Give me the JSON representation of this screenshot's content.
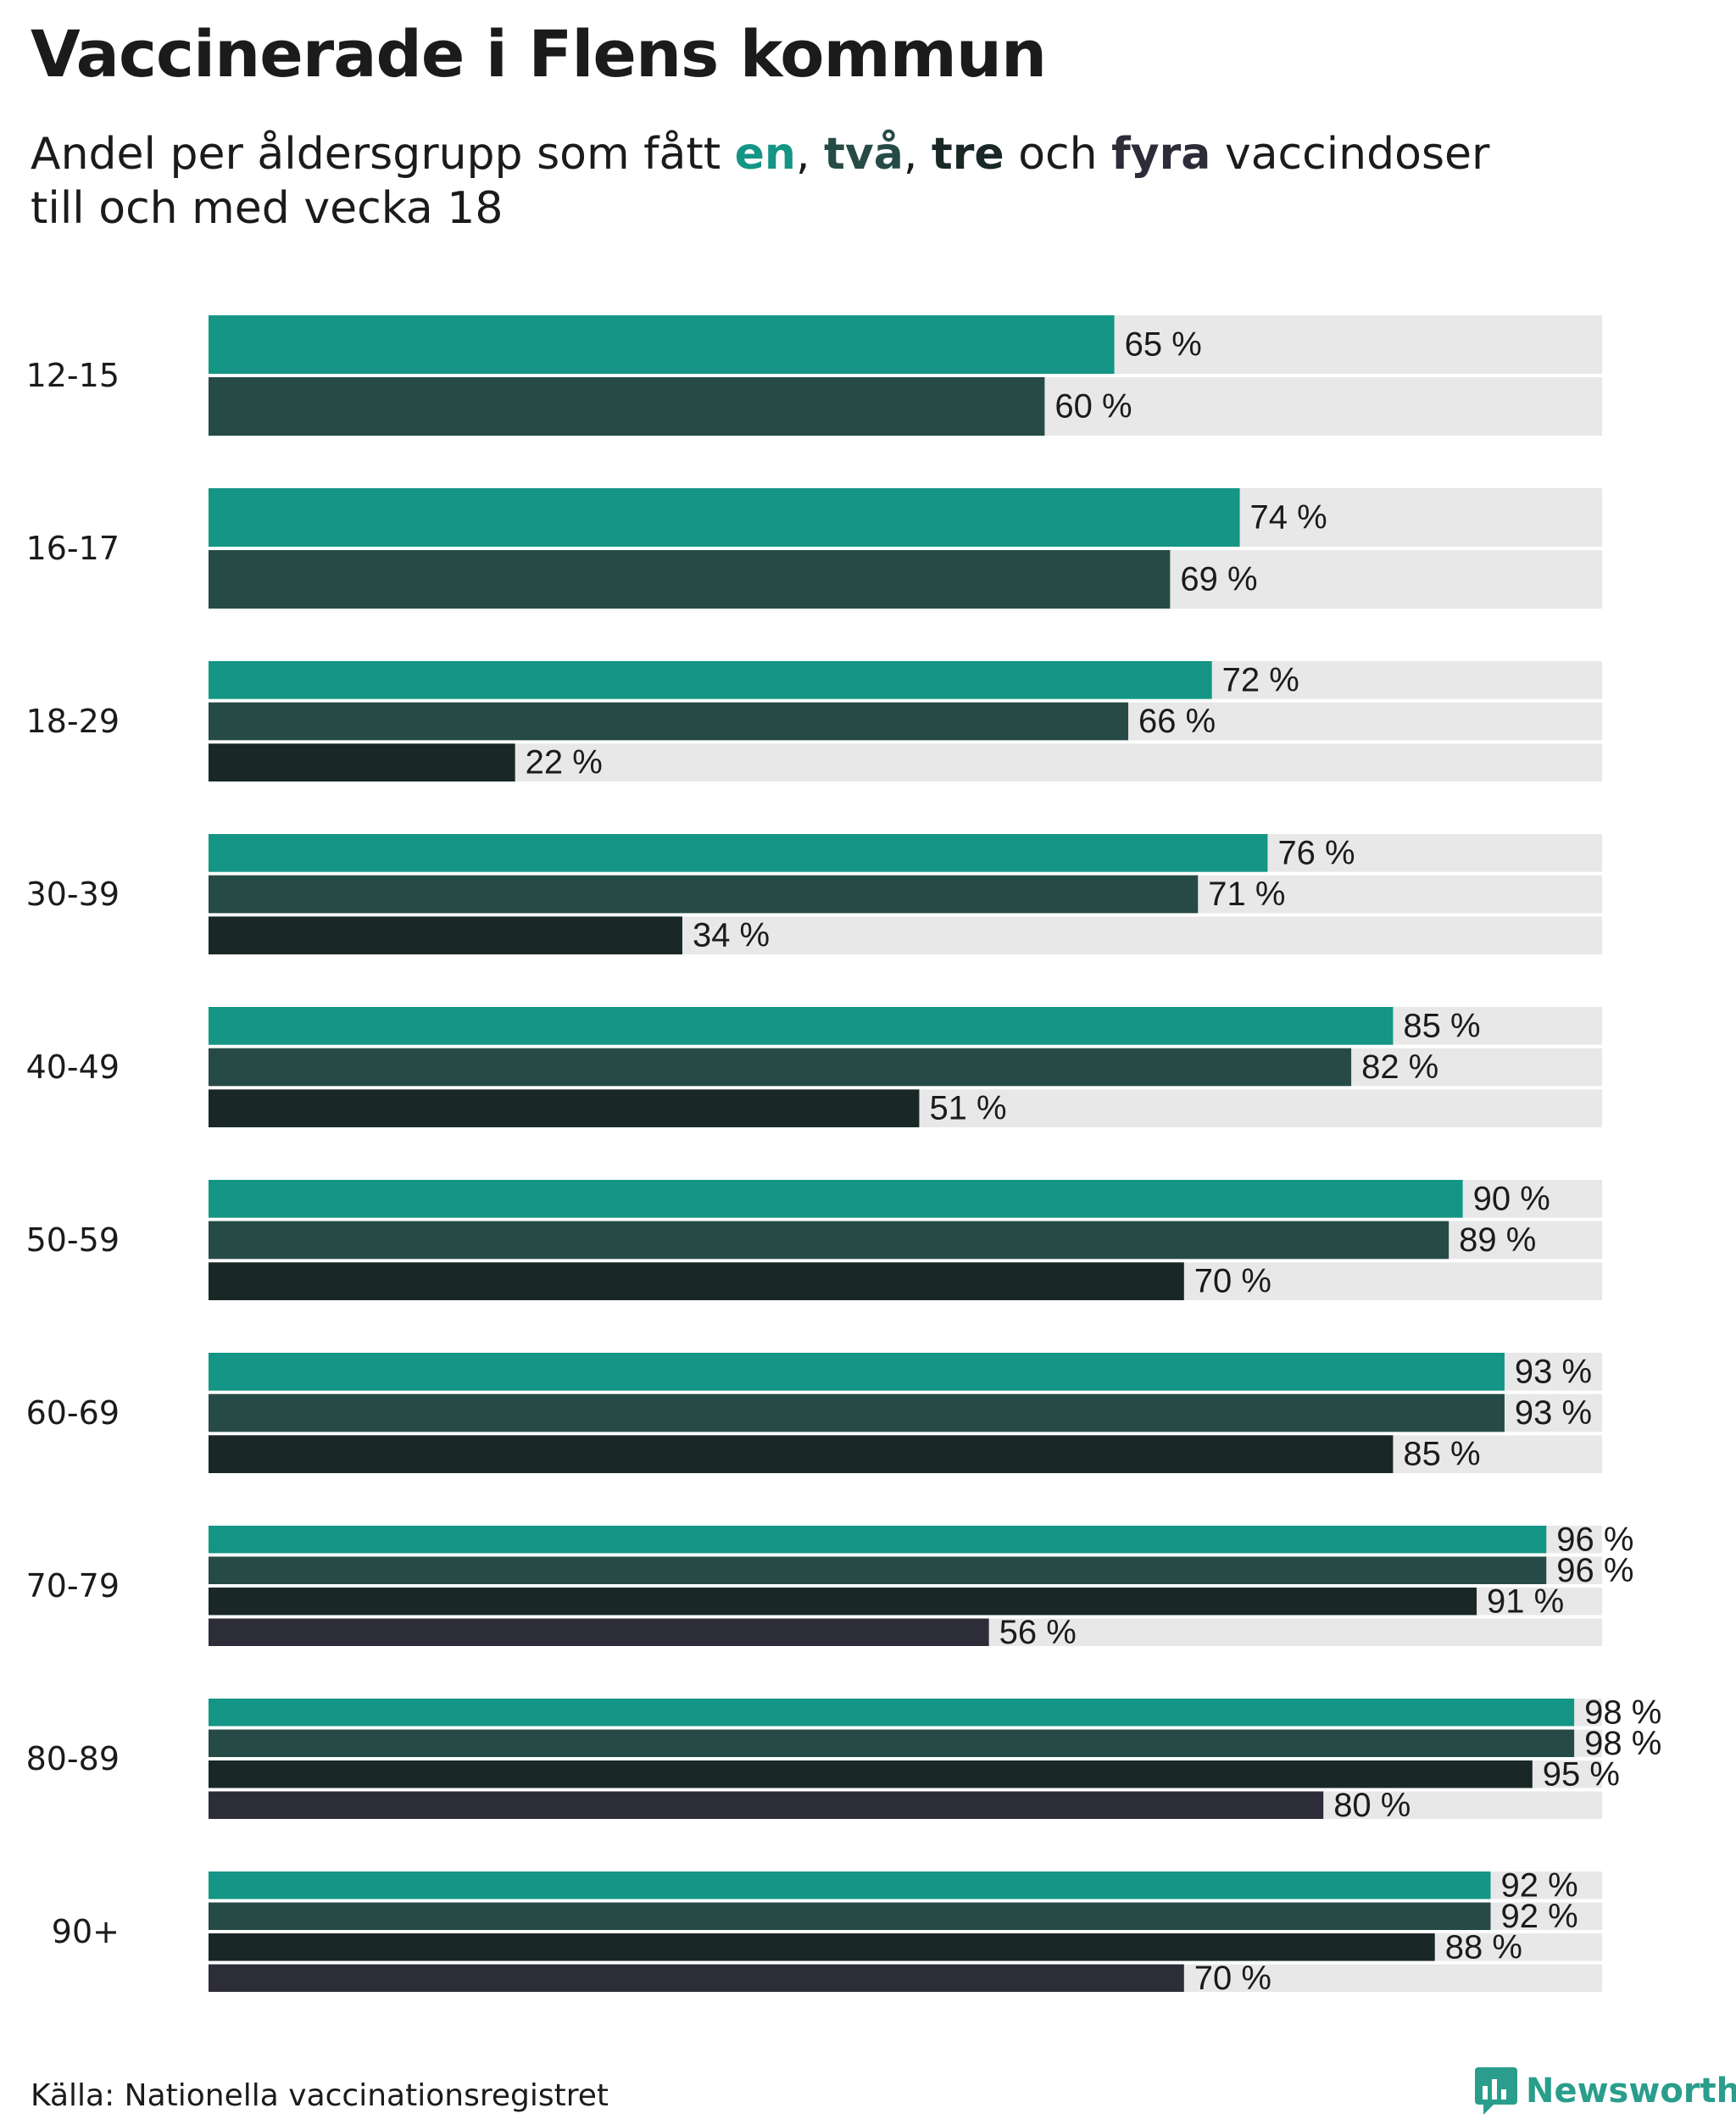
{
  "title": "Vaccinerade i Flens kommun",
  "subtitle": {
    "prefix": "Andel per åldersgrupp som fått ",
    "dose1": "en",
    "sep1": ", ",
    "dose2": "två",
    "sep2": ", ",
    "dose3": "tre",
    "mid": " och ",
    "dose4": "fyra",
    "suffix": " vaccindoser",
    "line2": "till och med vecka 18"
  },
  "source": "Källa: Nationella vaccinationsregistret",
  "logo": {
    "text": "Newsworthy",
    "icon": "newsworthy-logo-icon"
  },
  "colors": {
    "dose1": "#149585",
    "dose2": "#264b47",
    "dose3": "#192826",
    "dose4": "#2d2c39",
    "track": "#e8e8e8",
    "logo": "#2a9d8c"
  },
  "chart_data": {
    "type": "bar",
    "orientation": "horizontal",
    "value_suffix": " %",
    "xlim": [
      0,
      100
    ],
    "grid": false,
    "categories": [
      "12-15",
      "16-17",
      "18-29",
      "30-39",
      "40-49",
      "50-59",
      "60-69",
      "70-79",
      "80-89",
      "90+"
    ],
    "series": [
      {
        "name": "en",
        "values": [
          65,
          74,
          72,
          76,
          85,
          90,
          93,
          96,
          98,
          92
        ]
      },
      {
        "name": "två",
        "values": [
          60,
          69,
          66,
          71,
          82,
          89,
          93,
          96,
          98,
          92
        ]
      },
      {
        "name": "tre",
        "values": [
          null,
          null,
          22,
          34,
          51,
          70,
          85,
          91,
          95,
          88
        ]
      },
      {
        "name": "fyra",
        "values": [
          null,
          null,
          null,
          null,
          null,
          null,
          null,
          56,
          80,
          70
        ]
      }
    ]
  }
}
